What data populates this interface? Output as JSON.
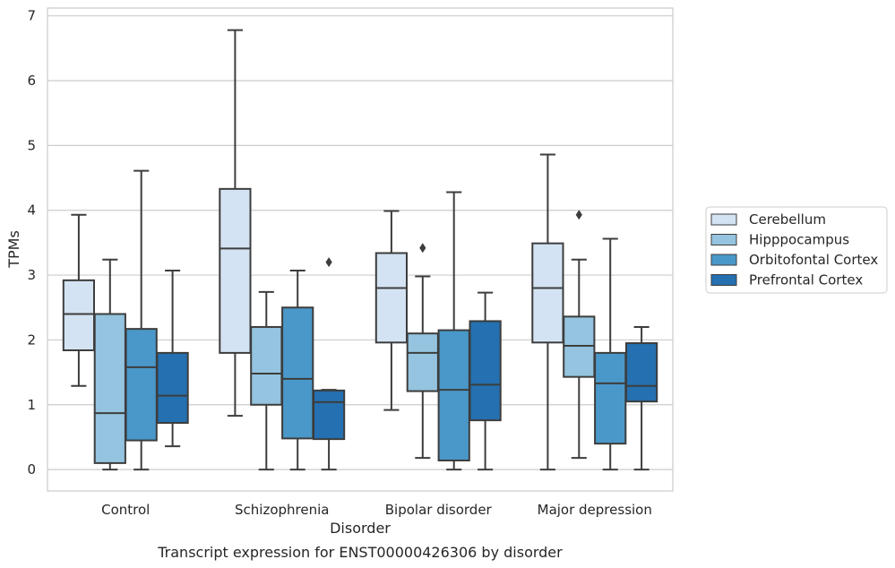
{
  "caption": "Transcript expression for ENST00000426306 by disorder",
  "chart_data": {
    "type": "box",
    "title": "",
    "xlabel": "Disorder",
    "ylabel": "TPMs",
    "ylim": [
      -0.33,
      7.12
    ],
    "yticks": [
      0,
      1,
      2,
      3,
      4,
      5,
      6,
      7
    ],
    "grid": "horizontal",
    "legend_position": "right",
    "categories": [
      "Control",
      "Schizophrenia",
      "Bipolar disorder",
      "Major depression"
    ],
    "series": [
      {
        "name": "Cerebellum",
        "color": "#d3e3f3",
        "boxes": [
          {
            "whislo": 1.29,
            "q1": 1.84,
            "med": 2.4,
            "q3": 2.92,
            "whishi": 3.93,
            "fliers": []
          },
          {
            "whislo": 0.83,
            "q1": 1.8,
            "med": 3.41,
            "q3": 4.33,
            "whishi": 6.78,
            "fliers": []
          },
          {
            "whislo": 0.92,
            "q1": 1.96,
            "med": 2.8,
            "q3": 3.34,
            "whishi": 3.99,
            "fliers": []
          },
          {
            "whislo": 0.0,
            "q1": 1.96,
            "med": 2.8,
            "q3": 3.49,
            "whishi": 4.86,
            "fliers": []
          }
        ]
      },
      {
        "name": "Hipppocampus",
        "color": "#94c4df",
        "boxes": [
          {
            "whislo": 0.0,
            "q1": 0.1,
            "med": 0.87,
            "q3": 2.4,
            "whishi": 3.24,
            "fliers": []
          },
          {
            "whislo": 0.0,
            "q1": 1.0,
            "med": 1.48,
            "q3": 2.2,
            "whishi": 2.74,
            "fliers": []
          },
          {
            "whislo": 0.18,
            "q1": 1.21,
            "med": 1.8,
            "q3": 2.1,
            "whishi": 2.98,
            "fliers": [
              3.42
            ]
          },
          {
            "whislo": 0.18,
            "q1": 1.43,
            "med": 1.91,
            "q3": 2.36,
            "whishi": 3.24,
            "fliers": [
              3.93
            ]
          }
        ]
      },
      {
        "name": "Orbitofontal Cortex",
        "color": "#4a98c9",
        "boxes": [
          {
            "whislo": 0.0,
            "q1": 0.45,
            "med": 1.58,
            "q3": 2.17,
            "whishi": 4.61,
            "fliers": []
          },
          {
            "whislo": 0.0,
            "q1": 0.48,
            "med": 1.4,
            "q3": 2.5,
            "whishi": 3.07,
            "fliers": []
          },
          {
            "whislo": 0.0,
            "q1": 0.14,
            "med": 1.23,
            "q3": 2.15,
            "whishi": 4.28,
            "fliers": []
          },
          {
            "whislo": 0.0,
            "q1": 0.4,
            "med": 1.33,
            "q3": 1.8,
            "whishi": 3.56,
            "fliers": []
          }
        ]
      },
      {
        "name": "Prefrontal Cortex",
        "color": "#2470b0",
        "boxes": [
          {
            "whislo": 0.36,
            "q1": 0.72,
            "med": 1.14,
            "q3": 1.8,
            "whishi": 3.07,
            "fliers": []
          },
          {
            "whislo": 0.0,
            "q1": 0.47,
            "med": 1.04,
            "q3": 1.22,
            "whishi": 1.23,
            "fliers": [
              3.2
            ]
          },
          {
            "whislo": 0.0,
            "q1": 0.76,
            "med": 1.31,
            "q3": 2.29,
            "whishi": 2.73,
            "fliers": []
          },
          {
            "whislo": 0.0,
            "q1": 1.05,
            "med": 1.29,
            "q3": 1.95,
            "whishi": 2.2,
            "fliers": []
          }
        ]
      }
    ]
  }
}
